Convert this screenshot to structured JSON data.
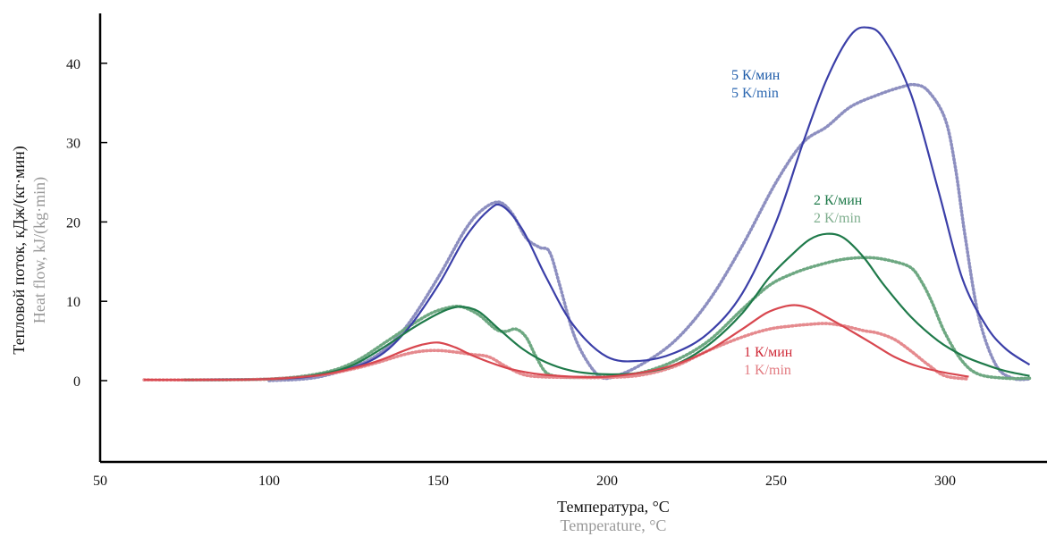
{
  "chart_data": {
    "type": "line",
    "xlabel_ru": "Температура, °C",
    "xlabel_en": "Temperature, °C",
    "ylabel_ru": "Тепловой поток, кДж/(кг·мин)",
    "ylabel_en": "Heat flow, kJ/(kg·min)",
    "xlim": [
      50,
      325
    ],
    "ylim": [
      -11,
      46
    ],
    "x_ticks": [
      50,
      100,
      150,
      200,
      250,
      300
    ],
    "y_ticks": [
      0,
      10,
      20,
      30,
      40
    ],
    "grid": false,
    "legend": "inline labels near curves",
    "colors": {
      "rate5_model": "#3b3fa8",
      "rate5_exp": "#8d8fc0",
      "rate2_model": "#1f7a4a",
      "rate2_exp": "#6ea882",
      "rate1_model": "#d8474f",
      "rate1_exp": "#e58a8e",
      "label5_ru": "#1c5aa8",
      "label5_en": "#2a66b0",
      "label2_ru": "#1f7a4a",
      "label2_en": "#7fae8e",
      "label1_ru": "#cf2a38",
      "label1_en": "#e27a80"
    },
    "labels": {
      "rate5_ru": "5 К/мин",
      "rate5_en": "5 K/min",
      "rate2_ru": "2 К/мин",
      "rate2_en": "2 K/min",
      "rate1_ru": "1 К/мин",
      "rate1_en": "1 K/min"
    },
    "series": [
      {
        "key": "rate5_model",
        "style": "solid",
        "x": [
          75,
          100,
          115,
          130,
          140,
          150,
          158,
          165,
          169,
          175,
          182,
          190,
          200,
          210,
          220,
          230,
          240,
          250,
          258,
          265,
          272,
          277,
          282,
          290,
          298,
          305,
          312,
          318,
          325
        ],
        "y": [
          0.1,
          0.2,
          0.7,
          2.5,
          6,
          12,
          18,
          21.5,
          22,
          19,
          13,
          7,
          3,
          2.5,
          3.5,
          6,
          11,
          20,
          30,
          38,
          43.5,
          44.5,
          43,
          36,
          24,
          13,
          7,
          4,
          2
        ]
      },
      {
        "key": "rate5_exp",
        "style": "dotted",
        "x": [
          100,
          115,
          130,
          140,
          150,
          158,
          163,
          168,
          172,
          176,
          180,
          183,
          186,
          190,
          194,
          198,
          202,
          210,
          220,
          230,
          240,
          250,
          258,
          265,
          272,
          280,
          287,
          291,
          295,
          300,
          303,
          306,
          310,
          315,
          320,
          325
        ],
        "y": [
          0,
          0.5,
          2.7,
          6.5,
          13,
          19,
          21.5,
          22.5,
          21,
          18,
          16.8,
          16.2,
          12,
          6,
          2.5,
          0.5,
          0.5,
          2,
          5,
          10,
          17,
          25,
          30,
          32,
          34.5,
          36,
          37,
          37.3,
          36.5,
          33,
          27,
          18,
          8,
          2,
          0.3,
          0.2
        ]
      },
      {
        "key": "rate2_model",
        "style": "solid",
        "x": [
          75,
          100,
          115,
          125,
          135,
          142,
          148,
          153,
          157,
          162,
          168,
          175,
          182,
          190,
          200,
          210,
          220,
          230,
          240,
          248,
          255,
          260,
          265,
          270,
          276,
          282,
          290,
          298,
          305,
          312,
          318,
          325
        ],
        "y": [
          0.1,
          0.2,
          0.8,
          2,
          4.5,
          6.5,
          8,
          9,
          9.3,
          8.7,
          6.5,
          4,
          2.3,
          1.2,
          0.8,
          1,
          2,
          4.5,
          8.5,
          13,
          16,
          17.8,
          18.5,
          18,
          15.5,
          12,
          8,
          5,
          3.2,
          2,
          1.2,
          0.6
        ]
      },
      {
        "key": "rate2_exp",
        "style": "dotted",
        "x": [
          75,
          100,
          115,
          125,
          135,
          142,
          148,
          153,
          157,
          162,
          167,
          170,
          173,
          176,
          179,
          182,
          186,
          190,
          200,
          210,
          220,
          230,
          240,
          248,
          255,
          262,
          270,
          278,
          285,
          290,
          293,
          296,
          300,
          305,
          310,
          318,
          325
        ],
        "y": [
          0.1,
          0.2,
          0.9,
          2.3,
          5,
          7,
          8.5,
          9.2,
          9.3,
          8.3,
          6.5,
          6.2,
          6.5,
          5.5,
          3,
          1,
          0.5,
          0.4,
          0.5,
          1,
          2.5,
          5,
          9,
          12,
          13.5,
          14.5,
          15.3,
          15.5,
          15,
          14.2,
          12.5,
          10,
          6,
          2.5,
          0.8,
          0.3,
          0.3
        ]
      },
      {
        "key": "rate1_model",
        "style": "solid",
        "x": [
          63,
          80,
          100,
          115,
          125,
          133,
          140,
          145,
          150,
          155,
          160,
          166,
          172,
          180,
          190,
          200,
          210,
          220,
          230,
          240,
          247,
          252,
          256,
          260,
          265,
          270,
          278,
          285,
          292,
          300,
          307
        ],
        "y": [
          0.1,
          0.1,
          0.2,
          0.7,
          1.6,
          2.6,
          3.8,
          4.5,
          4.8,
          4.2,
          3.2,
          2.2,
          1.4,
          0.8,
          0.5,
          0.5,
          1,
          2,
          3.8,
          6.5,
          8.5,
          9.3,
          9.5,
          9.1,
          8,
          6.8,
          4.8,
          3,
          1.8,
          1,
          0.5
        ]
      },
      {
        "key": "rate1_exp",
        "style": "dotted",
        "x": [
          63,
          80,
          100,
          115,
          125,
          133,
          140,
          145,
          150,
          155,
          160,
          165,
          170,
          175,
          180,
          190,
          200,
          210,
          220,
          230,
          240,
          248,
          255,
          260,
          265,
          270,
          276,
          280,
          285,
          290,
          295,
          300,
          307
        ],
        "y": [
          0.1,
          0.1,
          0.2,
          0.7,
          1.5,
          2.4,
          3.3,
          3.7,
          3.8,
          3.6,
          3.3,
          3,
          1.8,
          0.8,
          0.5,
          0.4,
          0.4,
          0.7,
          1.8,
          3.8,
          5.5,
          6.5,
          6.9,
          7.1,
          7.2,
          6.9,
          6.3,
          6,
          5.2,
          3.7,
          2,
          0.6,
          0.2
        ]
      }
    ]
  }
}
